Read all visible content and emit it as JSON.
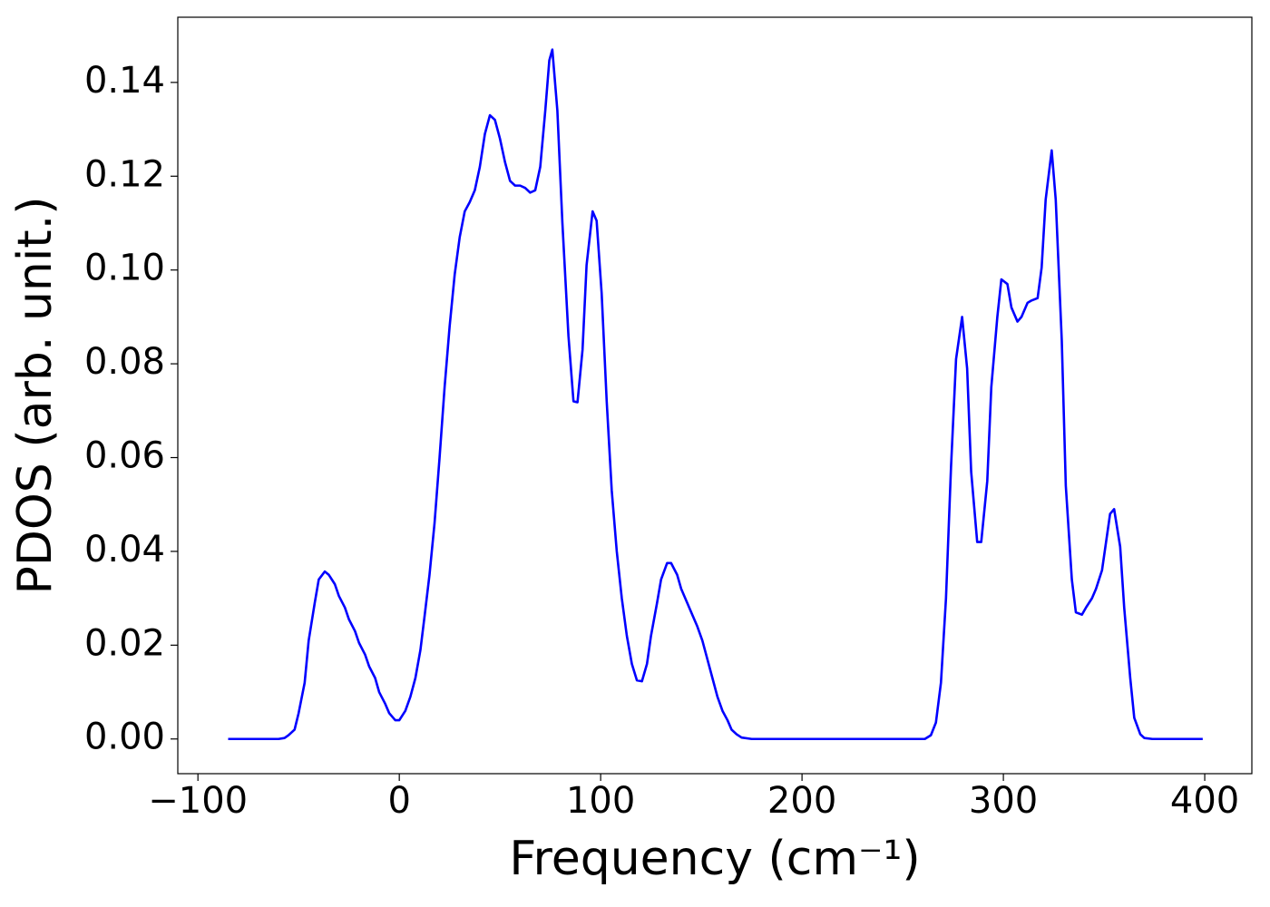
{
  "chart_data": {
    "type": "line",
    "xlabel": "Frequency (cm⁻¹)",
    "ylabel": "PDOS (arb. unit.)",
    "x": [
      -85,
      -60,
      -57,
      -55,
      -52,
      -50,
      -47,
      -45,
      -42,
      -40,
      -37,
      -35,
      -32,
      -30,
      -27,
      -25,
      -22,
      -20,
      -17,
      -15,
      -12,
      -10,
      -7,
      -5,
      -2,
      0,
      3,
      5.5,
      8,
      10.5,
      12.5,
      15,
      17.5,
      20,
      22.5,
      25,
      27.5,
      30,
      32.5,
      35,
      37.5,
      40,
      42.5,
      45,
      47.5,
      50,
      52.5,
      55,
      57.5,
      60,
      62.5,
      65,
      67.5,
      70,
      72.5,
      74.5,
      76,
      78.5,
      81,
      84,
      86.5,
      88.5,
      91,
      93,
      96,
      98,
      100.5,
      103,
      105.5,
      108,
      110.5,
      113,
      115.5,
      118,
      120.5,
      123,
      125,
      128,
      130,
      133,
      135,
      138,
      140,
      143,
      145.5,
      148,
      150.5,
      153,
      155.5,
      158,
      160.5,
      163,
      165,
      167.5,
      170,
      175,
      261,
      264,
      266.5,
      269,
      271.5,
      274,
      276.5,
      279.5,
      282,
      284,
      287,
      289,
      292,
      294,
      297,
      299,
      302,
      304,
      307,
      309,
      312,
      314,
      317,
      319,
      321,
      324,
      326,
      329,
      331,
      334,
      336,
      339,
      341,
      344,
      346,
      349,
      351,
      353,
      355,
      358,
      360,
      363,
      365,
      368,
      370,
      374,
      399
    ],
    "series": [
      {
        "name": "PDOS",
        "color": "#0000ff",
        "values": [
          0,
          0,
          0.0002,
          0.0008,
          0.002,
          0.0055,
          0.012,
          0.021,
          0.029,
          0.034,
          0.0357,
          0.035,
          0.033,
          0.0305,
          0.028,
          0.0255,
          0.023,
          0.0205,
          0.018,
          0.0155,
          0.013,
          0.01,
          0.0075,
          0.0055,
          0.004,
          0.004,
          0.006,
          0.009,
          0.013,
          0.019,
          0.026,
          0.035,
          0.046,
          0.06,
          0.075,
          0.088,
          0.099,
          0.107,
          0.1125,
          0.1145,
          0.117,
          0.122,
          0.129,
          0.133,
          0.132,
          0.128,
          0.123,
          0.119,
          0.118,
          0.118,
          0.1175,
          0.1165,
          0.117,
          0.122,
          0.134,
          0.1447,
          0.147,
          0.134,
          0.11,
          0.086,
          0.072,
          0.0718,
          0.083,
          0.101,
          0.1125,
          0.1105,
          0.095,
          0.072,
          0.053,
          0.04,
          0.03,
          0.022,
          0.016,
          0.0125,
          0.0123,
          0.016,
          0.022,
          0.029,
          0.034,
          0.0375,
          0.0375,
          0.035,
          0.032,
          0.029,
          0.0265,
          0.024,
          0.021,
          0.017,
          0.013,
          0.009,
          0.006,
          0.004,
          0.002,
          0.001,
          0.0003,
          0,
          0,
          0.0008,
          0.0035,
          0.012,
          0.03,
          0.058,
          0.081,
          0.09,
          0.079,
          0.057,
          0.042,
          0.042,
          0.055,
          0.075,
          0.09,
          0.098,
          0.097,
          0.092,
          0.089,
          0.09,
          0.093,
          0.0935,
          0.094,
          0.1005,
          0.115,
          0.1255,
          0.115,
          0.085,
          0.054,
          0.034,
          0.027,
          0.0265,
          0.028,
          0.03,
          0.032,
          0.036,
          0.042,
          0.048,
          0.049,
          0.041,
          0.028,
          0.013,
          0.0045,
          0.001,
          0.0002,
          0,
          0
        ]
      }
    ],
    "xlim": [
      -110,
      423.4
    ],
    "ylim": [
      -0.0074,
      0.1539
    ],
    "xticks": [
      {
        "value": -100,
        "label": "−100"
      },
      0,
      100,
      200,
      300,
      400
    ],
    "yticks": [
      {
        "value": 0,
        "label": "0.00"
      },
      {
        "value": 0.02,
        "label": "0.02"
      },
      {
        "value": 0.04,
        "label": "0.04"
      },
      {
        "value": 0.06,
        "label": "0.06"
      },
      {
        "value": 0.08,
        "label": "0.08"
      },
      {
        "value": 0.1,
        "label": "0.10"
      },
      {
        "value": 0.12,
        "label": "0.12"
      },
      {
        "value": 0.14,
        "label": "0.14"
      }
    ],
    "grid": false
  }
}
